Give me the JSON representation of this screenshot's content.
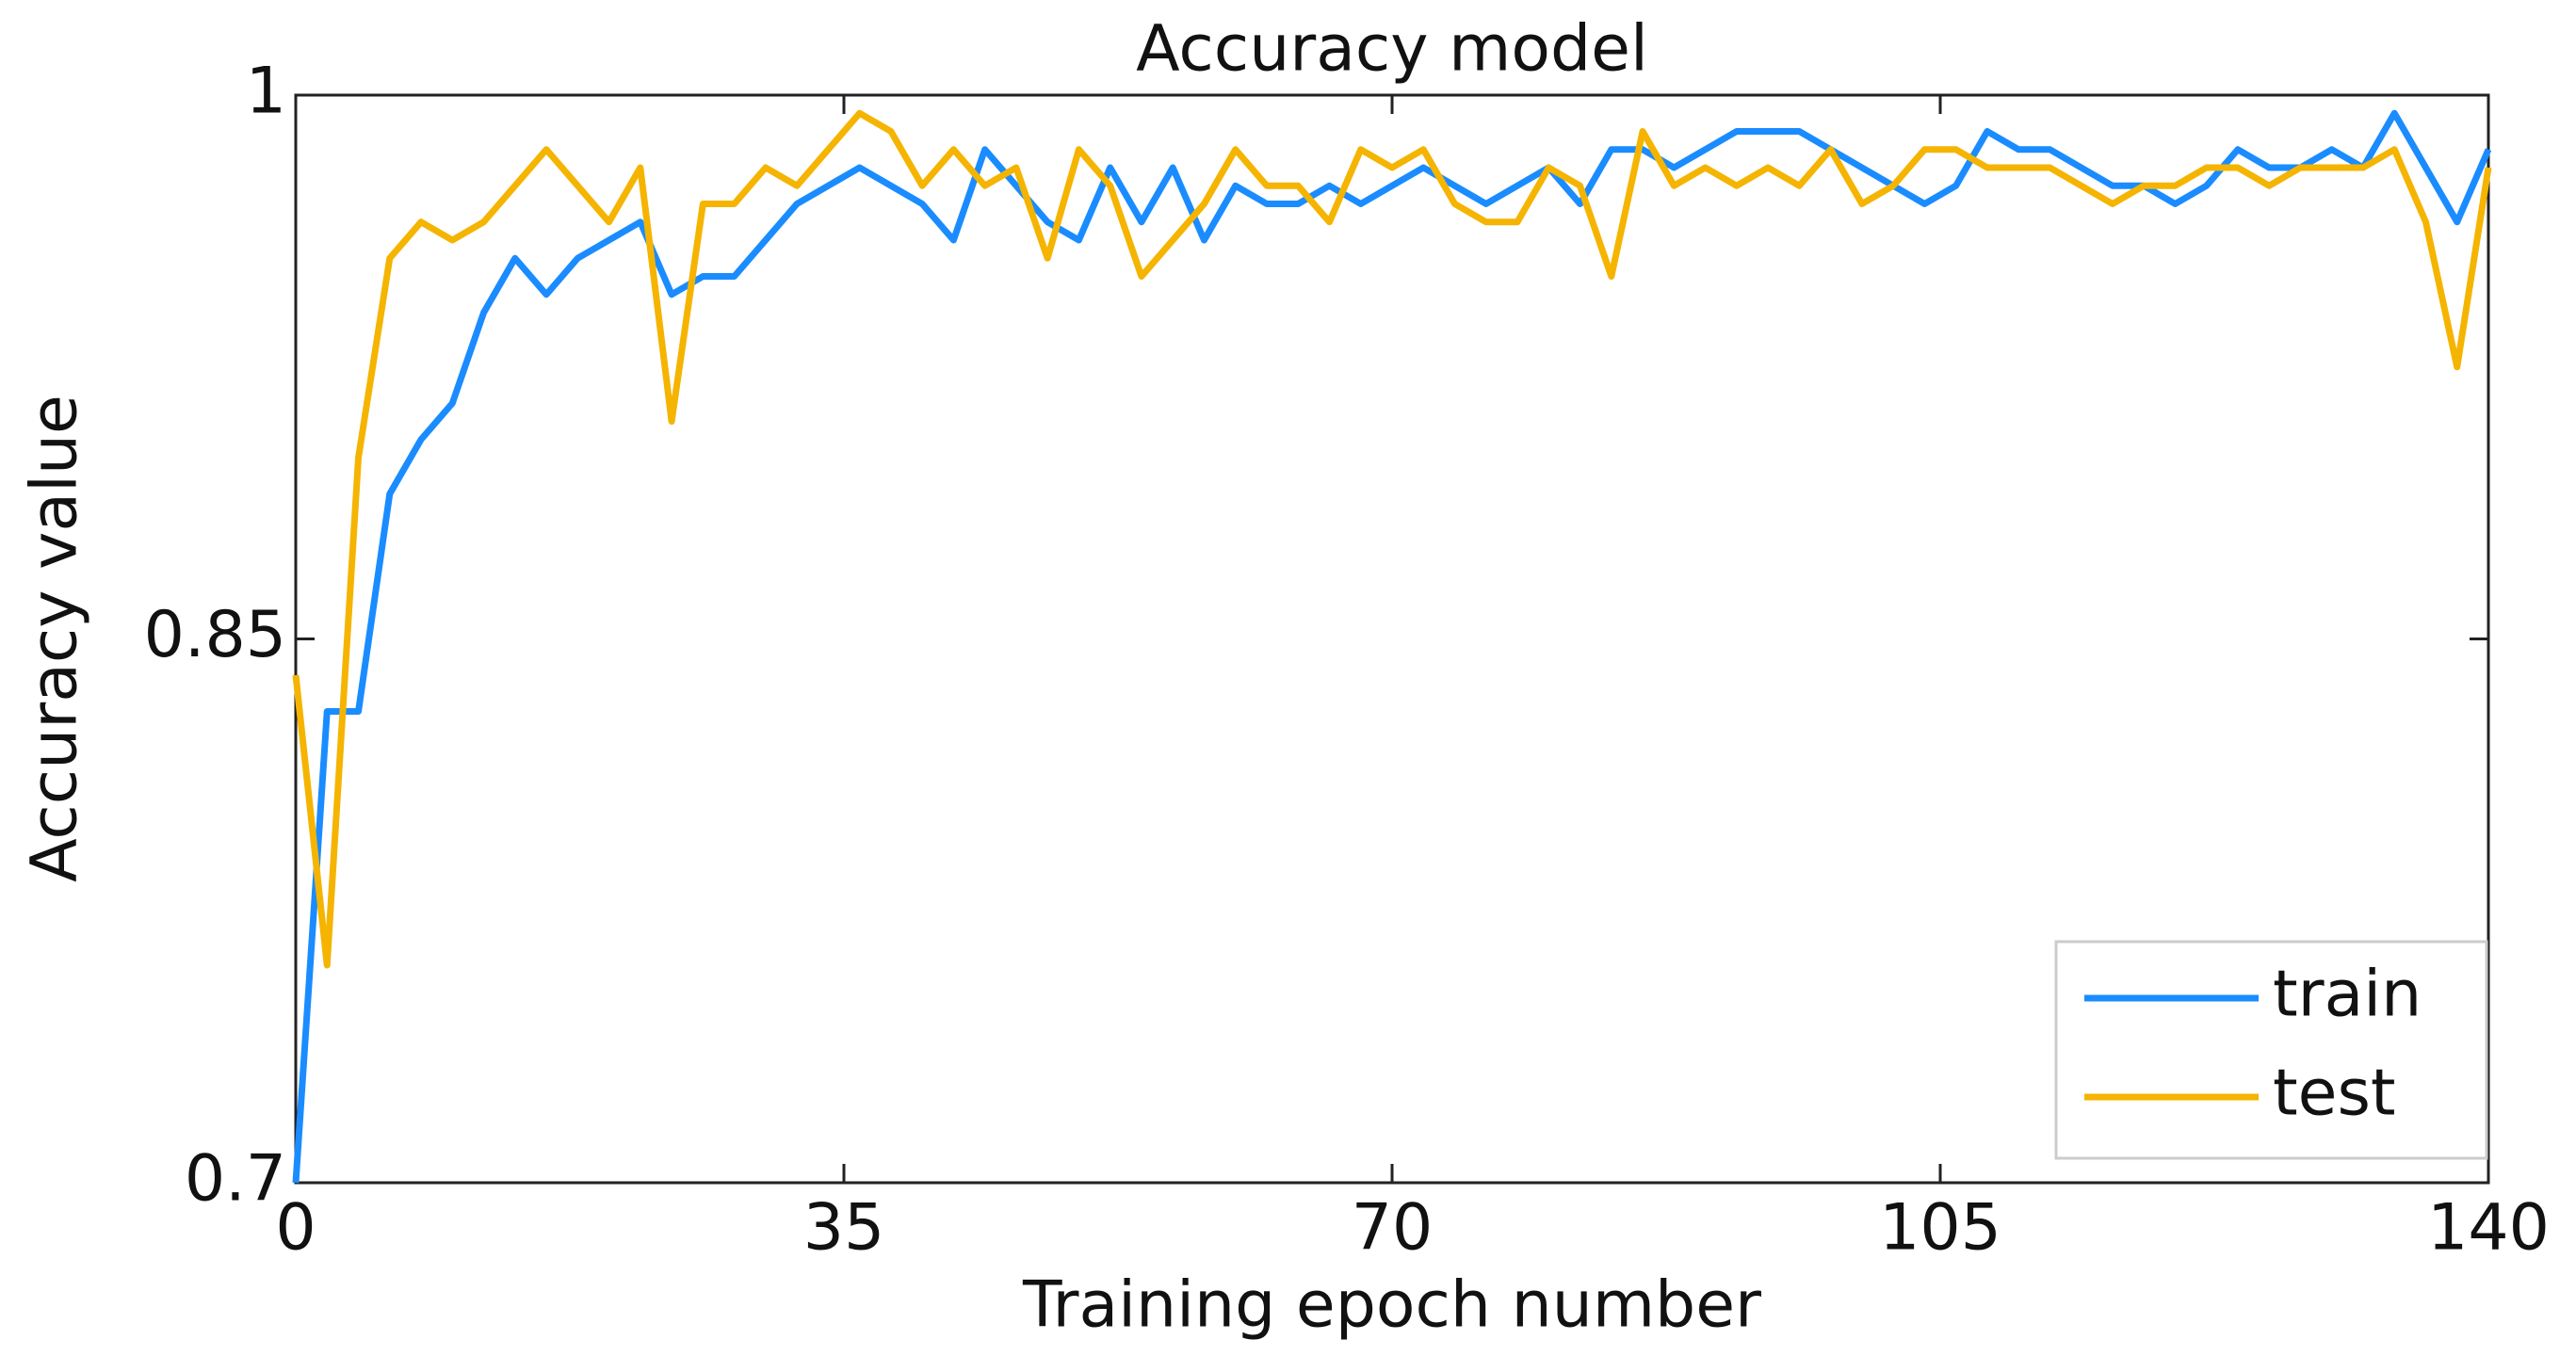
{
  "chart_data": {
    "type": "line",
    "title": "Accuracy model",
    "x_label": "Training epoch number",
    "y_label": "Accuracy value",
    "x": [
      0,
      2,
      4,
      6,
      8,
      10,
      12,
      14,
      16,
      18,
      20,
      22,
      24,
      26,
      28,
      30,
      32,
      34,
      36,
      38,
      40,
      42,
      44,
      46,
      48,
      50,
      52,
      54,
      56,
      58,
      60,
      62,
      64,
      66,
      68,
      70,
      72,
      74,
      76,
      78,
      80,
      82,
      84,
      86,
      88,
      90,
      92,
      94,
      96,
      98,
      100,
      102,
      104,
      106,
      108,
      110,
      112,
      114,
      116,
      118,
      120,
      122,
      124,
      126,
      128,
      130,
      132,
      134,
      136,
      138,
      140
    ],
    "series": [
      {
        "name": "train",
        "color": "#1a8cff",
        "values": [
          0.7,
          0.83,
          0.83,
          0.89,
          0.905,
          0.915,
          0.94,
          0.955,
          0.945,
          0.955,
          0.96,
          0.965,
          0.945,
          0.95,
          0.95,
          0.96,
          0.97,
          0.975,
          0.98,
          0.975,
          0.97,
          0.96,
          0.985,
          0.975,
          0.965,
          0.96,
          0.98,
          0.965,
          0.98,
          0.96,
          0.975,
          0.97,
          0.97,
          0.975,
          0.97,
          0.975,
          0.98,
          0.975,
          0.97,
          0.975,
          0.98,
          0.97,
          0.985,
          0.985,
          0.98,
          0.985,
          0.99,
          0.99,
          0.99,
          0.985,
          0.98,
          0.975,
          0.97,
          0.975,
          0.99,
          0.985,
          0.985,
          0.98,
          0.975,
          0.975,
          0.97,
          0.975,
          0.985,
          0.98,
          0.98,
          0.985,
          0.98,
          0.995,
          0.98,
          0.965,
          0.985
        ]
      },
      {
        "name": "test",
        "color": "#f5b400",
        "values": [
          0.84,
          0.76,
          0.9,
          0.955,
          0.965,
          0.96,
          0.965,
          0.975,
          0.985,
          0.975,
          0.965,
          0.98,
          0.91,
          0.97,
          0.97,
          0.98,
          0.975,
          0.985,
          0.995,
          0.99,
          0.975,
          0.985,
          0.975,
          0.98,
          0.955,
          0.985,
          0.975,
          0.95,
          0.96,
          0.97,
          0.985,
          0.975,
          0.975,
          0.965,
          0.985,
          0.98,
          0.985,
          0.97,
          0.965,
          0.965,
          0.98,
          0.975,
          0.95,
          0.99,
          0.975,
          0.98,
          0.975,
          0.98,
          0.975,
          0.985,
          0.97,
          0.975,
          0.985,
          0.985,
          0.98,
          0.98,
          0.98,
          0.975,
          0.97,
          0.975,
          0.975,
          0.98,
          0.98,
          0.975,
          0.98,
          0.98,
          0.98,
          0.985,
          0.965,
          0.925,
          0.98
        ]
      }
    ],
    "xlim": [
      0,
      140
    ],
    "xticks": [
      0,
      35,
      70,
      105,
      140
    ],
    "ylim": [
      0.7,
      1
    ],
    "yticks": [
      0.7,
      0.85,
      1
    ],
    "grid": false,
    "legend": "lower right"
  }
}
